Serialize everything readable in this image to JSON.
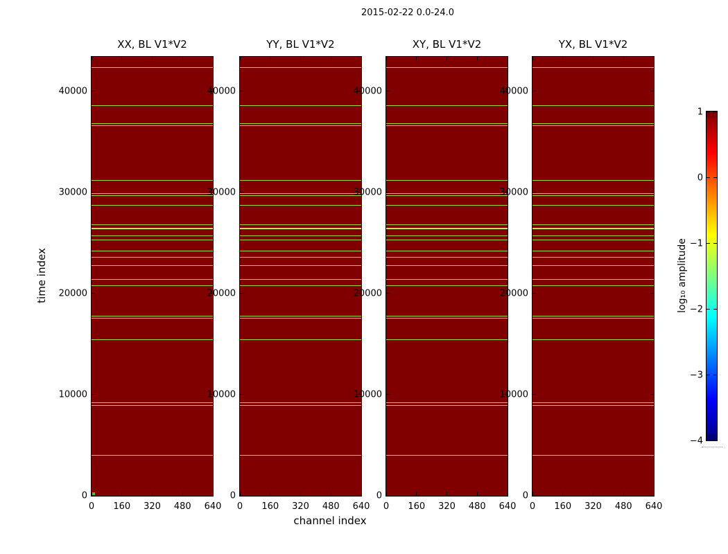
{
  "figure": {
    "suptitle": "2015-02-22 0.0-24.0",
    "background_color": "#ffffff"
  },
  "chart_data": {
    "type": "heatmap",
    "title": "2015-02-22 0.0-24.0",
    "panels": [
      {
        "title": "XX, BL V1*V2"
      },
      {
        "title": "YY, BL V1*V2"
      },
      {
        "title": "XY, BL V1*V2"
      },
      {
        "title": "YX, BL V1*V2"
      }
    ],
    "x": {
      "label": "channel index",
      "range": [
        0,
        640
      ],
      "ticks": [
        0,
        160,
        320,
        480,
        640
      ],
      "tick_labels": [
        "0",
        "160",
        "320",
        "480",
        "640"
      ]
    },
    "y": {
      "label": "time index",
      "axis_max": 43400,
      "ticks": [
        0,
        10000,
        20000,
        30000,
        40000
      ],
      "tick_labels": [
        "0",
        "10000",
        "20000",
        "30000",
        "40000"
      ]
    },
    "heatmap": {
      "background_value": 1.0,
      "background_color": "#800000",
      "line_color": "#9fdc3a",
      "bright_line_color": "#bdea4d",
      "flagged_rows_time_index": [
        42330,
        38560,
        36800,
        36580,
        31210,
        29910,
        29680,
        28750,
        26820,
        26410,
        25680,
        25290,
        24200,
        23590,
        22770,
        21410,
        20770,
        17760,
        17590,
        15440,
        9210,
        8940,
        3980
      ],
      "bright_row_time_index": 26410,
      "origin_marker": {
        "panel_index": 0,
        "channel": 0,
        "time": 0,
        "color": "#4ec32c"
      }
    },
    "colorbar": {
      "label": "log₁₀ amplitude",
      "colormap": "jet",
      "range": [
        -4,
        1
      ],
      "ticks": [
        1,
        0,
        -1,
        -2,
        -3,
        -4
      ],
      "tick_labels": [
        "1",
        "0",
        "−1",
        "−2",
        "−3",
        "−4"
      ]
    }
  }
}
